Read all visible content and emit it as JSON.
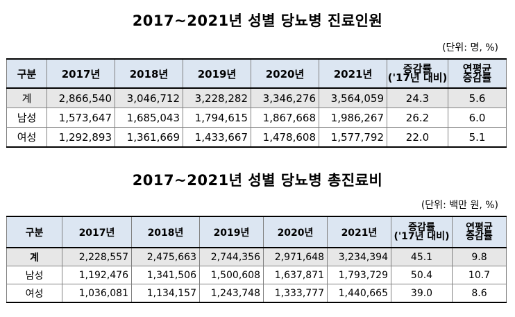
{
  "table1": {
    "title": "2017~2021년 성별 당뇨병 진료인원",
    "unit": "(단위: 명, %)",
    "headers": [
      "구분",
      "2017년",
      "2018년",
      "2019년",
      "2020년",
      "2021년"
    ],
    "change_header_line1": "증감률",
    "change_header_line2": "('17년 대비)",
    "cagr_header_line1": "연평균",
    "cagr_header_line2": "증감률",
    "rows": [
      {
        "label": "계",
        "values": [
          "2,866,540",
          "3,046,712",
          "3,228,282",
          "3,346,276",
          "3,564,059"
        ],
        "change": "24.3",
        "cagr": "5.6"
      },
      {
        "label": "남성",
        "values": [
          "1,573,647",
          "1,685,043",
          "1,794,615",
          "1,867,668",
          "1,986,267"
        ],
        "change": "26.2",
        "cagr": "6.0"
      },
      {
        "label": "여성",
        "values": [
          "1,292,893",
          "1,361,669",
          "1,433,667",
          "1,478,608",
          "1,577,792"
        ],
        "change": "22.0",
        "cagr": "5.1"
      }
    ]
  },
  "table2": {
    "title": "2017~2021년 성별 당뇨병 총진료비",
    "unit": "(단위: 백만 원, %)",
    "headers": [
      "구분",
      "2017년",
      "2018년",
      "2019년",
      "2020년",
      "2021년"
    ],
    "change_header_line1": "증감률",
    "change_header_line2": "('17년 대비)",
    "cagr_header_line1": "연평균",
    "cagr_header_line2": "증감률",
    "rows": [
      {
        "label": "계",
        "values": [
          "2,228,557",
          "2,475,663",
          "2,744,356",
          "2,971,648",
          "3,234,394"
        ],
        "change": "45.1",
        "cagr": "9.8"
      },
      {
        "label": "남성",
        "values": [
          "1,192,476",
          "1,341,506",
          "1,500,608",
          "1,637,871",
          "1,793,729"
        ],
        "change": "50.4",
        "cagr": "10.7"
      },
      {
        "label": "여성",
        "values": [
          "1,036,081",
          "1,134,157",
          "1,243,748",
          "1,333,777",
          "1,440,665"
        ],
        "change": "39.0",
        "cagr": "8.6"
      }
    ]
  }
}
